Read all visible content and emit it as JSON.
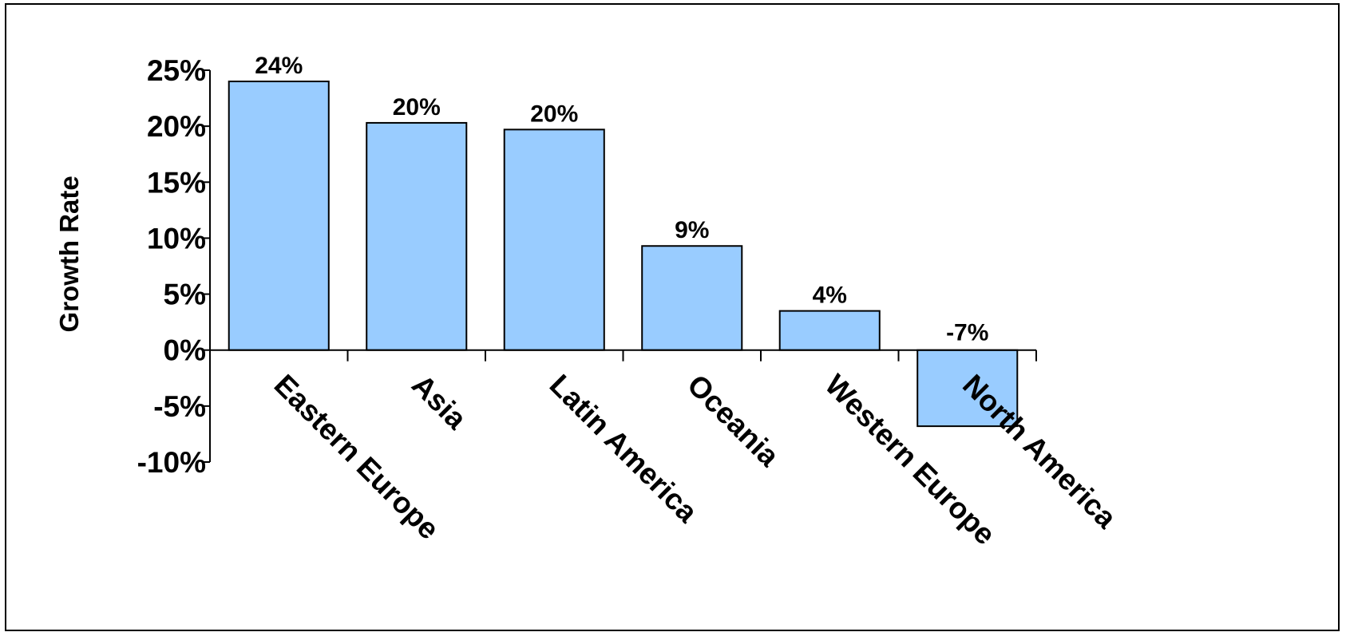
{
  "chart_data": {
    "type": "bar",
    "categories": [
      "Eastern Europe",
      "Asia",
      "Latin America",
      "Oceania",
      "Western Europe",
      "North America"
    ],
    "values": [
      24,
      20.3,
      19.7,
      9.3,
      3.5,
      -6.8
    ],
    "data_labels": [
      "24%",
      "20%",
      "20%",
      "9%",
      "4%",
      "-7%"
    ],
    "title": "",
    "xlabel": "",
    "ylabel": "Growth Rate",
    "ylim": [
      -10,
      25
    ],
    "yticks": [
      25,
      20,
      15,
      10,
      5,
      0,
      -5,
      -10
    ],
    "ytick_labels": [
      "25%",
      "20%",
      "15%",
      "10%",
      "5%",
      "0%",
      "-5%",
      "-10%"
    ],
    "grid": false,
    "legend": "none",
    "bar_color": "#99ccff",
    "border_color": "#000000"
  }
}
